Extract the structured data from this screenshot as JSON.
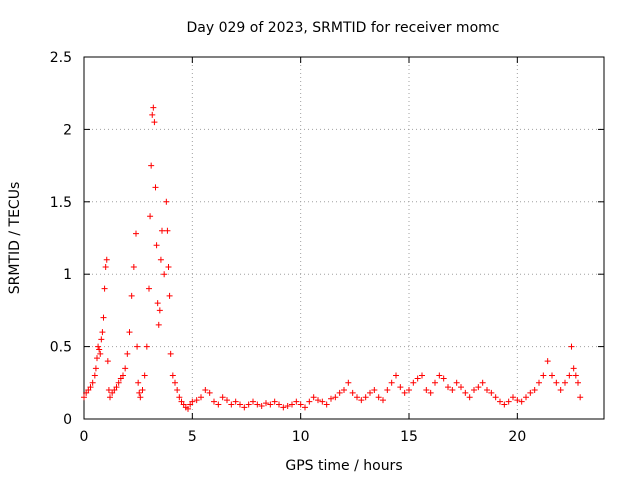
{
  "chart_data": {
    "type": "scatter",
    "title": "Day 029 of 2023, SRMTID for receiver momc",
    "xlabel": "GPS time / hours",
    "ylabel": "SRMTID / TECUs",
    "xlim": [
      0,
      24
    ],
    "ylim": [
      0,
      2.5
    ],
    "xticks": [
      0,
      5,
      10,
      15,
      20
    ],
    "yticks": [
      0,
      0.5,
      1,
      1.5,
      2,
      2.5
    ],
    "xtick_labels": [
      "0",
      "5",
      "10",
      "15",
      "20"
    ],
    "ytick_labels": [
      "0",
      "0.5",
      "1",
      "1.5",
      "2",
      "2.5"
    ],
    "grid": true,
    "marker": "+",
    "series": [
      {
        "name": "SRMTID",
        "color": "#ff0000",
        "x": [
          0.0,
          0.1,
          0.2,
          0.3,
          0.4,
          0.5,
          0.55,
          0.6,
          0.65,
          0.7,
          0.75,
          0.8,
          0.85,
          0.9,
          0.95,
          1.0,
          1.05,
          1.1,
          1.15,
          1.2,
          1.3,
          1.4,
          1.5,
          1.6,
          1.7,
          1.8,
          1.9,
          2.0,
          2.1,
          2.2,
          2.3,
          2.4,
          2.45,
          2.5,
          2.55,
          2.6,
          2.7,
          2.8,
          2.9,
          3.0,
          3.05,
          3.1,
          3.15,
          3.2,
          3.25,
          3.3,
          3.35,
          3.4,
          3.45,
          3.5,
          3.55,
          3.6,
          3.7,
          3.8,
          3.85,
          3.9,
          3.95,
          4.0,
          4.1,
          4.2,
          4.3,
          4.4,
          4.5,
          4.6,
          4.7,
          4.8,
          4.9,
          5.0,
          5.2,
          5.4,
          5.6,
          5.8,
          6.0,
          6.2,
          6.4,
          6.6,
          6.8,
          7.0,
          7.2,
          7.4,
          7.6,
          7.8,
          8.0,
          8.2,
          8.4,
          8.6,
          8.8,
          9.0,
          9.2,
          9.4,
          9.6,
          9.8,
          10.0,
          10.2,
          10.4,
          10.6,
          10.8,
          11.0,
          11.2,
          11.4,
          11.6,
          11.8,
          12.0,
          12.2,
          12.4,
          12.6,
          12.8,
          13.0,
          13.2,
          13.4,
          13.6,
          13.8,
          14.0,
          14.2,
          14.4,
          14.6,
          14.8,
          15.0,
          15.2,
          15.4,
          15.6,
          15.8,
          16.0,
          16.2,
          16.4,
          16.6,
          16.8,
          17.0,
          17.2,
          17.4,
          17.6,
          17.8,
          18.0,
          18.2,
          18.4,
          18.6,
          18.8,
          19.0,
          19.2,
          19.4,
          19.6,
          19.8,
          20.0,
          20.2,
          20.4,
          20.6,
          20.8,
          21.0,
          21.2,
          21.4,
          21.6,
          21.8,
          22.0,
          22.2,
          22.4,
          22.5,
          22.6,
          22.7,
          22.8,
          22.9
        ],
        "y": [
          0.15,
          0.18,
          0.2,
          0.22,
          0.25,
          0.3,
          0.35,
          0.42,
          0.5,
          0.48,
          0.45,
          0.55,
          0.6,
          0.7,
          0.9,
          1.05,
          1.1,
          0.4,
          0.2,
          0.15,
          0.18,
          0.2,
          0.22,
          0.25,
          0.28,
          0.3,
          0.35,
          0.45,
          0.6,
          0.85,
          1.05,
          1.28,
          0.5,
          0.25,
          0.18,
          0.15,
          0.2,
          0.3,
          0.5,
          0.9,
          1.4,
          1.75,
          2.1,
          2.15,
          2.05,
          1.6,
          1.2,
          0.8,
          0.65,
          0.75,
          1.1,
          1.3,
          1.0,
          1.5,
          1.3,
          1.05,
          0.85,
          0.45,
          0.3,
          0.25,
          0.2,
          0.15,
          0.12,
          0.1,
          0.08,
          0.07,
          0.1,
          0.12,
          0.13,
          0.15,
          0.2,
          0.18,
          0.12,
          0.1,
          0.15,
          0.13,
          0.1,
          0.12,
          0.1,
          0.08,
          0.1,
          0.12,
          0.1,
          0.09,
          0.11,
          0.1,
          0.12,
          0.1,
          0.08,
          0.09,
          0.1,
          0.12,
          0.1,
          0.08,
          0.12,
          0.15,
          0.13,
          0.12,
          0.1,
          0.14,
          0.15,
          0.18,
          0.2,
          0.25,
          0.18,
          0.15,
          0.13,
          0.15,
          0.18,
          0.2,
          0.15,
          0.13,
          0.2,
          0.25,
          0.3,
          0.22,
          0.18,
          0.2,
          0.25,
          0.28,
          0.3,
          0.2,
          0.18,
          0.25,
          0.3,
          0.28,
          0.22,
          0.2,
          0.25,
          0.22,
          0.18,
          0.15,
          0.2,
          0.22,
          0.25,
          0.2,
          0.18,
          0.15,
          0.12,
          0.1,
          0.12,
          0.15,
          0.13,
          0.12,
          0.15,
          0.18,
          0.2,
          0.25,
          0.3,
          0.4,
          0.3,
          0.25,
          0.2,
          0.25,
          0.3,
          0.5,
          0.35,
          0.3,
          0.25,
          0.15
        ]
      }
    ]
  },
  "colors": {
    "series": "#ff0000",
    "grid": "#a0a0a0",
    "axis": "#000000",
    "background": "#ffffff"
  }
}
